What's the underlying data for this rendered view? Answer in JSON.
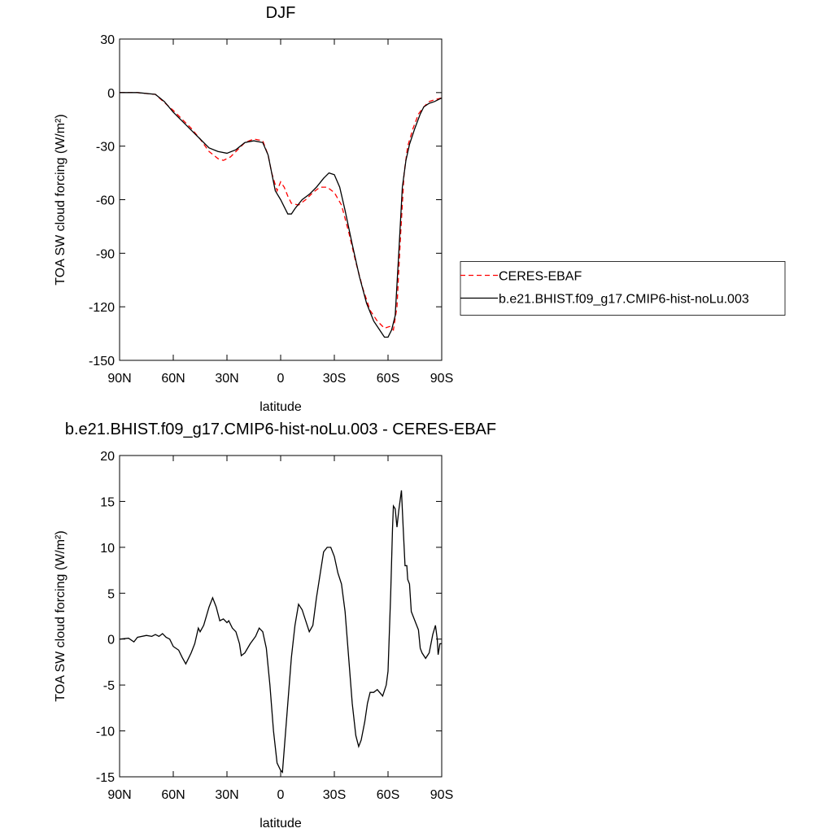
{
  "chart_data": [
    {
      "type": "line",
      "title": "DJF",
      "xlabel": "latitude",
      "ylabel": "TOA SW cloud forcing (W/m²)",
      "xlim": [
        90,
        -90
      ],
      "xticks": [
        {
          "value": 90,
          "label": "90N"
        },
        {
          "value": 60,
          "label": "60N"
        },
        {
          "value": 30,
          "label": "30N"
        },
        0,
        {
          "value": -30,
          "label": "30S"
        },
        {
          "value": -60,
          "label": "60S"
        },
        {
          "value": -90,
          "label": "90S"
        }
      ],
      "ylim": [
        -150,
        30
      ],
      "yticks": [
        -150,
        -120,
        -90,
        -60,
        -30,
        0,
        30
      ],
      "legend": "right",
      "series": [
        {
          "name": "CERES-EBAF",
          "color": "#ff0000",
          "dash": true,
          "x": [
            90,
            80,
            70,
            60,
            55,
            50,
            45,
            40,
            35,
            32,
            28,
            25,
            20,
            15,
            10,
            7,
            5,
            2,
            0,
            -2,
            -4,
            -6,
            -10,
            -14,
            -18,
            -22,
            -26,
            -30,
            -34,
            -38,
            -42,
            -46,
            -50,
            -54,
            -58,
            -61,
            -63,
            -65,
            -67,
            -69,
            -71,
            -74,
            -77,
            -80,
            -83,
            -86,
            -90
          ],
          "values": [
            0,
            0,
            -1,
            -10,
            -15,
            -20,
            -26,
            -33,
            -37,
            -38,
            -36,
            -33,
            -28,
            -26,
            -27,
            -35,
            -45,
            -55,
            -50,
            -53,
            -58,
            -62,
            -63,
            -60,
            -56,
            -53,
            -53,
            -56,
            -63,
            -78,
            -95,
            -110,
            -122,
            -128,
            -132,
            -131,
            -133,
            -120,
            -80,
            -45,
            -30,
            -20,
            -12,
            -8,
            -5,
            -4,
            -3
          ]
        },
        {
          "name": "b.e21.BHIST.f09_g17.CMIP6-hist-noLu.003",
          "color": "#000000",
          "dash": false,
          "x": [
            90,
            80,
            70,
            65,
            60,
            55,
            50,
            45,
            40,
            35,
            30,
            25,
            20,
            15,
            10,
            7,
            5,
            3,
            0,
            -2,
            -4,
            -6,
            -8,
            -12,
            -16,
            -20,
            -24,
            -27,
            -30,
            -33,
            -36,
            -40,
            -44,
            -48,
            -52,
            -56,
            -58,
            -60,
            -62,
            -64,
            -66,
            -68,
            -70,
            -72,
            -75,
            -78,
            -80,
            -83,
            -86,
            -90
          ],
          "values": [
            0,
            0,
            -1,
            -5,
            -11,
            -16,
            -21,
            -26,
            -31,
            -33,
            -34,
            -32,
            -28,
            -27,
            -28,
            -35,
            -45,
            -55,
            -60,
            -64,
            -68,
            -68,
            -65,
            -60,
            -57,
            -53,
            -48,
            -45,
            -46,
            -53,
            -66,
            -85,
            -103,
            -118,
            -128,
            -134,
            -137,
            -137,
            -133,
            -125,
            -90,
            -53,
            -38,
            -29,
            -20,
            -12,
            -8,
            -6,
            -5,
            -3
          ]
        }
      ]
    },
    {
      "type": "line",
      "title": "b.e21.BHIST.f09_g17.CMIP6-hist-noLu.003 - CERES-EBAF",
      "xlabel": "latitude",
      "ylabel": "TOA SW cloud forcing (W/m²)",
      "xlim": [
        90,
        -90
      ],
      "xticks": [
        {
          "value": 90,
          "label": "90N"
        },
        {
          "value": 60,
          "label": "60N"
        },
        {
          "value": 30,
          "label": "30N"
        },
        0,
        {
          "value": -30,
          "label": "30S"
        },
        {
          "value": -60,
          "label": "60S"
        },
        {
          "value": -90,
          "label": "90S"
        }
      ],
      "ylim": [
        -15,
        20
      ],
      "yticks": [
        -15,
        -10,
        -5,
        0,
        5,
        10,
        15,
        20
      ],
      "series": [
        {
          "color": "#000000",
          "dash": false,
          "x": [
            90,
            85,
            82,
            80,
            75,
            72,
            70,
            68,
            66,
            64,
            62,
            60,
            57,
            55,
            53,
            50,
            48,
            46,
            45,
            43,
            40,
            38,
            36,
            34,
            32,
            30,
            29,
            27,
            25,
            23,
            22,
            20,
            17,
            14,
            12,
            10,
            8,
            6,
            4,
            2,
            0,
            -1,
            -2,
            -4,
            -6,
            -8,
            -10,
            -12,
            -14,
            -16,
            -18,
            -20,
            -22,
            -24,
            -26,
            -28,
            -30,
            -32,
            -34,
            -36,
            -38,
            -40,
            -42,
            -43.6,
            -45,
            -47,
            -48.5,
            -50,
            -52,
            -54,
            -57,
            -59,
            -60,
            -61.5,
            -62.5,
            -63,
            -64,
            -65,
            -66,
            -67.5,
            -68.5,
            -69.5,
            -70.5,
            -71,
            -72,
            -73,
            -75,
            -77,
            -78,
            -79,
            -81,
            -83,
            -85,
            -86.5,
            -87.5,
            -88,
            -89,
            -90
          ],
          "values": [
            0,
            0.1,
            -0.3,
            0.2,
            0.4,
            0.3,
            0.5,
            0.3,
            0.6,
            0.2,
            0,
            -0.8,
            -1.2,
            -2,
            -2.7,
            -1.5,
            -0.5,
            1.2,
            0.8,
            1.5,
            3.5,
            4.5,
            3.5,
            2,
            2.2,
            1.8,
            2,
            1.2,
            0.8,
            -0.5,
            -1.8,
            -1.5,
            -0.5,
            0.3,
            1.2,
            0.8,
            -1,
            -5,
            -10,
            -13.5,
            -14.3,
            -14.5,
            -12,
            -7,
            -2,
            1.5,
            3.8,
            3.2,
            2,
            0.8,
            1.5,
            4.5,
            7,
            9.5,
            10,
            10,
            9,
            7.2,
            6,
            3,
            -2,
            -7,
            -10.5,
            -11.7,
            -11,
            -9,
            -7,
            -5.8,
            -5.8,
            -5.5,
            -6.2,
            -5,
            -3.5,
            5,
            12,
            14.5,
            14.2,
            12.2,
            14,
            16.2,
            12,
            8,
            8,
            6.5,
            6,
            3,
            2,
            1,
            -1,
            -1.5,
            -2.1,
            -1.5,
            0.5,
            1.5,
            0,
            -1.7,
            -0.5,
            -0.5
          ]
        }
      ]
    }
  ]
}
